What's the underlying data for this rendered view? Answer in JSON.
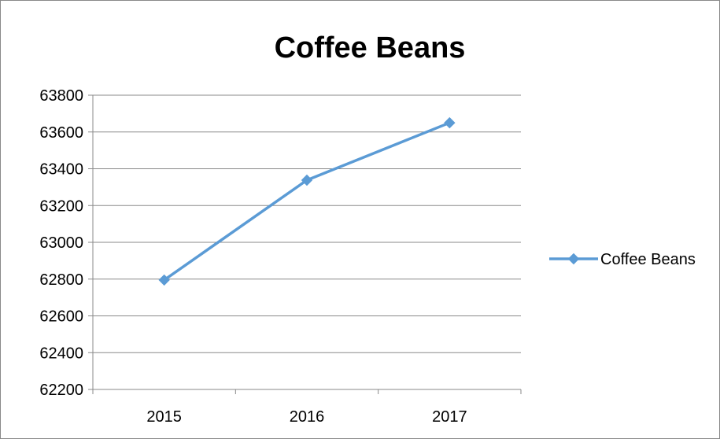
{
  "chart_data": {
    "type": "line",
    "title": "Coffee Beans",
    "xlabel": "",
    "ylabel": "",
    "categories": [
      "2015",
      "2016",
      "2017"
    ],
    "series": [
      {
        "name": "Coffee Beans",
        "values": [
          62795,
          63338,
          63650
        ],
        "color": "#5b9bd5",
        "marker": "diamond"
      }
    ],
    "ylim": [
      62200,
      63800
    ],
    "yticks": [
      62200,
      62400,
      62600,
      62800,
      63000,
      63200,
      63400,
      63600,
      63800
    ],
    "grid": "horizontal",
    "legend_position": "right"
  }
}
